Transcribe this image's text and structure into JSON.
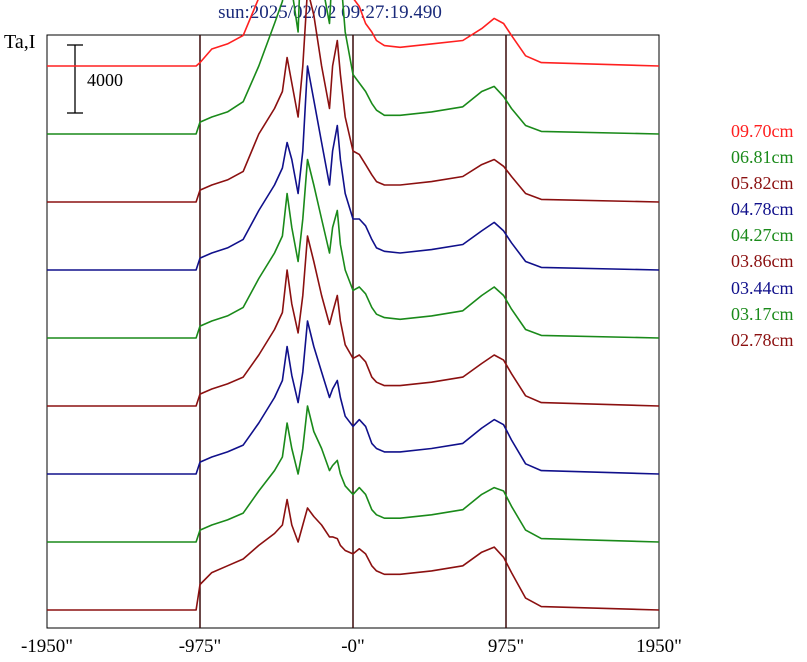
{
  "title": "sun:2025/02/02 09:27:19.490",
  "ylabel": "Ta,I",
  "scale_bar_label": "4000",
  "chart_data": {
    "type": "line",
    "title": "sun:2025/02/02 09:27:19.490",
    "ylabel": "Ta,I",
    "xlabel": "",
    "x_ticks": [
      "-1950\"",
      "-975\"",
      "-0\"",
      "975\"",
      "1950\""
    ],
    "x_tick_values": [
      -1950,
      -975,
      0,
      975,
      1950
    ],
    "xlim": [
      -1950,
      1950
    ],
    "vertical_lines": [
      -975,
      0,
      975
    ],
    "scale_bar": 4000,
    "grid": false,
    "legend_position": "right",
    "series": [
      {
        "name": "09.70cm",
        "color": "#ff2020",
        "offset": 32000,
        "x": [
          -1950,
          -1000,
          -975,
          -900,
          -800,
          -700,
          -600,
          -500,
          -450,
          -420,
          -390,
          -350,
          -320,
          -290,
          -250,
          -200,
          -150,
          -130,
          -100,
          -80,
          -50,
          0,
          40,
          80,
          120,
          150,
          200,
          300,
          500,
          700,
          820,
          900,
          960,
          1010,
          1100,
          1200,
          1950
        ],
        "y": [
          0,
          0,
          200,
          1000,
          1300,
          1800,
          4000,
          6500,
          7800,
          9500,
          8500,
          6000,
          8000,
          11500,
          12000,
          9500,
          7000,
          10500,
          13000,
          9500,
          6500,
          4000,
          3500,
          2500,
          2000,
          1500,
          1200,
          1100,
          1300,
          1500,
          2200,
          2800,
          2500,
          1800,
          600,
          200,
          0
        ]
      },
      {
        "name": "06.81cm",
        "color": "#1a8a1a",
        "offset": 28000,
        "x": [
          -1950,
          -1000,
          -975,
          -900,
          -800,
          -700,
          -600,
          -500,
          -450,
          -420,
          -390,
          -350,
          -320,
          -290,
          -250,
          -200,
          -150,
          -130,
          -100,
          -80,
          -50,
          0,
          40,
          80,
          120,
          150,
          200,
          300,
          500,
          700,
          820,
          900,
          960,
          1010,
          1100,
          1200,
          1950
        ],
        "y": [
          0,
          0,
          700,
          1000,
          1300,
          1900,
          4000,
          6500,
          7800,
          9500,
          8500,
          6000,
          13500,
          12500,
          11500,
          9000,
          6500,
          10000,
          12500,
          9500,
          6000,
          3500,
          3000,
          2500,
          1800,
          1400,
          1100,
          1100,
          1300,
          1600,
          2500,
          2800,
          2200,
          1500,
          500,
          150,
          0
        ]
      },
      {
        "name": "05.82cm",
        "color": "#8b1010",
        "offset": 24000,
        "x": [
          -1950,
          -1000,
          -975,
          -900,
          -800,
          -700,
          -600,
          -500,
          -450,
          -420,
          -390,
          -350,
          -320,
          -290,
          -250,
          -200,
          -150,
          -130,
          -100,
          -80,
          -50,
          0,
          40,
          80,
          120,
          150,
          200,
          300,
          500,
          700,
          820,
          900,
          960,
          1010,
          1100,
          1200,
          1950
        ],
        "y": [
          0,
          0,
          700,
          1000,
          1300,
          1800,
          4000,
          5500,
          6500,
          8500,
          7000,
          5000,
          8000,
          12500,
          11000,
          8000,
          5500,
          8000,
          9500,
          7500,
          5000,
          3000,
          2800,
          2200,
          1600,
          1200,
          1000,
          1000,
          1200,
          1500,
          2200,
          2500,
          2100,
          1500,
          500,
          150,
          0
        ]
      },
      {
        "name": "04.78cm",
        "color": "#10108b",
        "offset": 20000,
        "x": [
          -1950,
          -1000,
          -975,
          -900,
          -800,
          -700,
          -600,
          -500,
          -450,
          -420,
          -390,
          -350,
          -320,
          -290,
          -250,
          -200,
          -150,
          -130,
          -100,
          -80,
          -50,
          0,
          40,
          80,
          120,
          150,
          200,
          300,
          500,
          700,
          820,
          900,
          960,
          1010,
          1100,
          1200,
          1950
        ],
        "y": [
          0,
          0,
          700,
          1000,
          1300,
          1800,
          3500,
          5000,
          6000,
          7500,
          6500,
          4500,
          7000,
          12000,
          10000,
          7500,
          5000,
          7000,
          8500,
          6500,
          4500,
          3000,
          3000,
          2600,
          1800,
          1300,
          1100,
          1000,
          1200,
          1500,
          2300,
          2800,
          2300,
          1600,
          500,
          150,
          0
        ]
      },
      {
        "name": "04.27cm",
        "color": "#1a8a1a",
        "offset": 16000,
        "x": [
          -1950,
          -1000,
          -975,
          -900,
          -800,
          -700,
          -600,
          -500,
          -450,
          -420,
          -390,
          -350,
          -320,
          -290,
          -250,
          -200,
          -150,
          -130,
          -100,
          -80,
          -50,
          0,
          40,
          80,
          120,
          150,
          200,
          300,
          500,
          700,
          820,
          900,
          960,
          1010,
          1100,
          1200,
          1950
        ],
        "y": [
          0,
          0,
          700,
          1000,
          1300,
          1800,
          3500,
          5000,
          6000,
          8500,
          6500,
          4500,
          7000,
          10500,
          9000,
          7000,
          5000,
          6500,
          7500,
          5500,
          4000,
          2800,
          3000,
          2600,
          1800,
          1400,
          1200,
          1100,
          1300,
          1600,
          2500,
          3000,
          2500,
          1700,
          500,
          150,
          0
        ]
      },
      {
        "name": "03.86cm",
        "color": "#8b1010",
        "offset": 12000,
        "x": [
          -1950,
          -1000,
          -975,
          -900,
          -800,
          -700,
          -600,
          -500,
          -450,
          -420,
          -390,
          -350,
          -320,
          -290,
          -250,
          -200,
          -150,
          -130,
          -100,
          -80,
          -50,
          0,
          40,
          80,
          120,
          150,
          200,
          300,
          500,
          700,
          820,
          900,
          960,
          1010,
          1100,
          1200,
          1950
        ],
        "y": [
          0,
          0,
          700,
          1000,
          1300,
          1700,
          3000,
          4500,
          5500,
          8000,
          6000,
          4300,
          6500,
          10000,
          8500,
          6500,
          4800,
          5500,
          6500,
          5000,
          3600,
          2800,
          3000,
          2600,
          1700,
          1400,
          1200,
          1200,
          1400,
          1700,
          2500,
          3000,
          2700,
          1900,
          600,
          200,
          0
        ]
      },
      {
        "name": "03.44cm",
        "color": "#10108b",
        "offset": 8000,
        "x": [
          -1950,
          -1000,
          -975,
          -900,
          -800,
          -700,
          -600,
          -500,
          -450,
          -420,
          -390,
          -350,
          -320,
          -290,
          -250,
          -200,
          -150,
          -130,
          -100,
          -80,
          -50,
          0,
          40,
          80,
          120,
          150,
          200,
          300,
          500,
          700,
          820,
          900,
          960,
          1010,
          1100,
          1200,
          1950
        ],
        "y": [
          0,
          0,
          700,
          1000,
          1300,
          1700,
          3000,
          4500,
          5500,
          7500,
          5800,
          4200,
          6000,
          9000,
          7500,
          6000,
          4500,
          5000,
          5500,
          4500,
          3400,
          2800,
          3200,
          2800,
          1800,
          1500,
          1300,
          1300,
          1500,
          1800,
          2700,
          3200,
          2900,
          2000,
          600,
          200,
          0
        ]
      },
      {
        "name": "03.17cm",
        "color": "#1a8a1a",
        "offset": 4000,
        "x": [
          -1950,
          -1000,
          -975,
          -900,
          -800,
          -700,
          -600,
          -500,
          -450,
          -420,
          -390,
          -350,
          -320,
          -290,
          -250,
          -200,
          -150,
          -130,
          -100,
          -80,
          -50,
          0,
          40,
          80,
          120,
          150,
          200,
          300,
          500,
          700,
          820,
          900,
          960,
          1010,
          1100,
          1200,
          1950
        ],
        "y": [
          0,
          0,
          700,
          1000,
          1300,
          1700,
          3000,
          4200,
          5000,
          7000,
          5500,
          4000,
          5500,
          8000,
          6500,
          5500,
          4200,
          4500,
          4800,
          4000,
          3300,
          2800,
          3200,
          2800,
          1900,
          1600,
          1400,
          1400,
          1600,
          1900,
          2800,
          3200,
          3000,
          2100,
          700,
          200,
          0
        ]
      },
      {
        "name": "02.78cm",
        "color": "#8b1010",
        "offset": 0,
        "x": [
          -1950,
          -1000,
          -975,
          -900,
          -800,
          -700,
          -600,
          -500,
          -450,
          -420,
          -390,
          -350,
          -320,
          -290,
          -250,
          -200,
          -150,
          -130,
          -100,
          -80,
          -50,
          0,
          40,
          80,
          120,
          150,
          200,
          300,
          500,
          700,
          820,
          900,
          960,
          1010,
          1100,
          1200,
          1950
        ],
        "y": [
          0,
          0,
          1500,
          2200,
          2600,
          3000,
          3800,
          4500,
          5000,
          6500,
          5000,
          4000,
          5000,
          6000,
          5500,
          5000,
          4300,
          4300,
          4200,
          3800,
          3500,
          3300,
          3600,
          3300,
          2600,
          2300,
          2100,
          2100,
          2300,
          2600,
          3400,
          3700,
          3100,
          2200,
          700,
          200,
          0
        ]
      }
    ]
  }
}
